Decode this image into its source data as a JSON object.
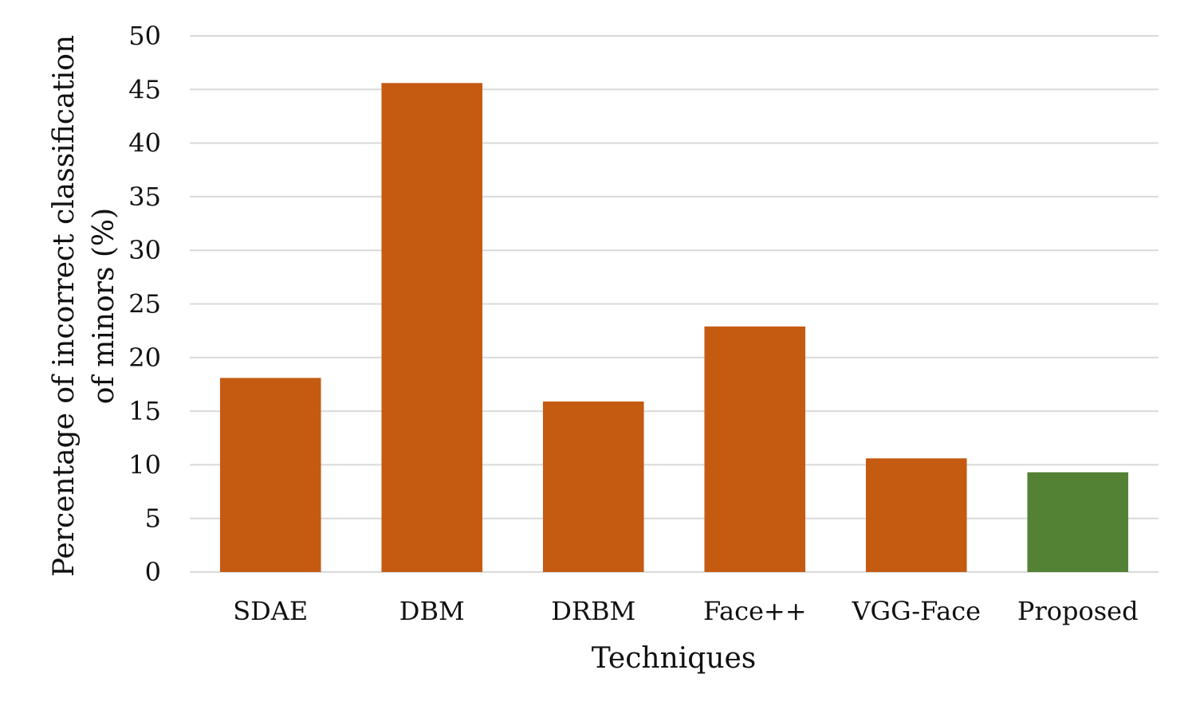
{
  "chart_data": {
    "type": "bar",
    "categories": [
      "SDAE",
      "DBM",
      "DRBM",
      "Face++",
      "VGG-Face",
      "Proposed"
    ],
    "values": [
      18.1,
      45.6,
      15.9,
      22.9,
      10.6,
      9.3
    ],
    "bar_colors": [
      "#c55a11",
      "#c55a11",
      "#c55a11",
      "#c55a11",
      "#c55a11",
      "#548235"
    ],
    "title": "",
    "xlabel": "Techniques",
    "ylabel_line1": "Percentage of incorrect classification",
    "ylabel_line2": "of minors (%)",
    "ylim": [
      0,
      50
    ],
    "yticks": [
      0,
      5,
      10,
      15,
      20,
      25,
      30,
      35,
      40,
      45,
      50
    ],
    "grid": true,
    "legend": "none"
  }
}
